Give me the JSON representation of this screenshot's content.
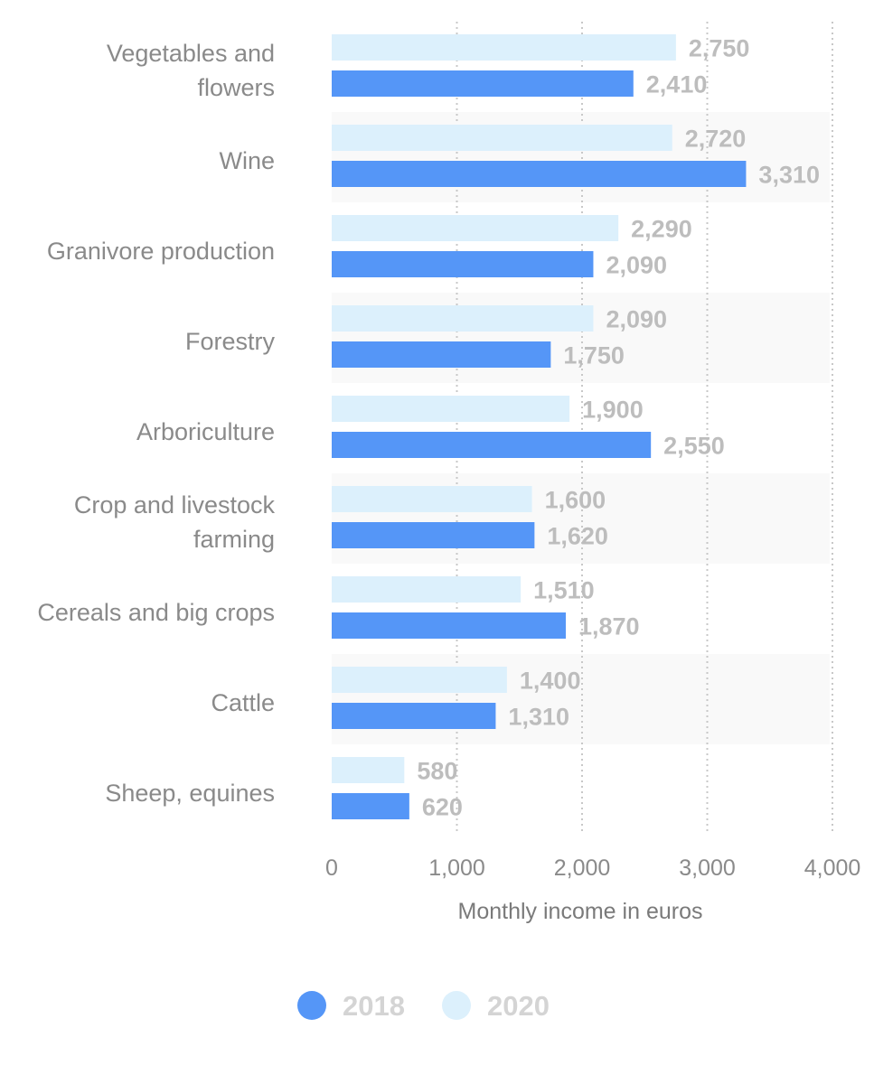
{
  "chart_data": {
    "type": "bar",
    "orientation": "horizontal",
    "categories": [
      [
        "Vegetables and",
        "flowers"
      ],
      [
        "Wine"
      ],
      [
        "Granivore production"
      ],
      [
        "Forestry"
      ],
      [
        "Arboriculture"
      ],
      [
        "Crop and livestock",
        "farming"
      ],
      [
        "Cereals and big crops"
      ],
      [
        "Cattle"
      ],
      [
        "Sheep, equines"
      ]
    ],
    "series": [
      {
        "name": "2020",
        "color": "#dcf0fc",
        "values": [
          2750,
          2720,
          2290,
          2090,
          1900,
          1600,
          1510,
          1400,
          580
        ],
        "labels": [
          "2,750",
          "2,720",
          "2,290",
          "2,090",
          "1,900",
          "1,600",
          "1,510",
          "1,400",
          "580"
        ]
      },
      {
        "name": "2018",
        "color": "#5596f7",
        "values": [
          2410,
          3310,
          2090,
          1750,
          2550,
          1620,
          1870,
          1310,
          620
        ],
        "labels": [
          "2,410",
          "3,310",
          "2,090",
          "1,750",
          "2,550",
          "1,620",
          "1,870",
          "1,310",
          "620"
        ]
      }
    ],
    "xlim": [
      0,
      4000
    ],
    "xticks": [
      0,
      1000,
      2000,
      3000,
      4000
    ],
    "xtick_labels": [
      "0",
      "1,000",
      "2,000",
      "3,000",
      "4,000"
    ],
    "xlabel": "Monthly income in euros",
    "ylabel": "",
    "title": "",
    "grid": "vertical dotted",
    "legend": {
      "position": "bottom-center",
      "items": [
        {
          "label": "2018",
          "color": "#5596f7"
        },
        {
          "label": "2020",
          "color": "#dcf0fc"
        }
      ]
    }
  }
}
